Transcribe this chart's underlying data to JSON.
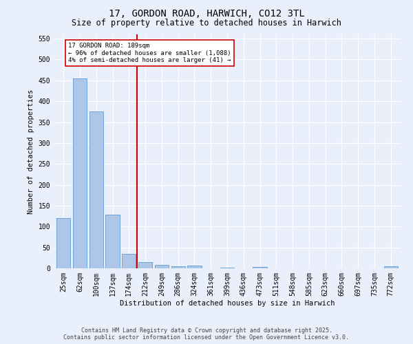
{
  "title": "17, GORDON ROAD, HARWICH, CO12 3TL",
  "subtitle": "Size of property relative to detached houses in Harwich",
  "xlabel": "Distribution of detached houses by size in Harwich",
  "ylabel": "Number of detached properties",
  "bar_labels": [
    "25sqm",
    "62sqm",
    "100sqm",
    "137sqm",
    "174sqm",
    "212sqm",
    "249sqm",
    "286sqm",
    "324sqm",
    "361sqm",
    "399sqm",
    "436sqm",
    "473sqm",
    "511sqm",
    "548sqm",
    "585sqm",
    "623sqm",
    "660sqm",
    "697sqm",
    "735sqm",
    "772sqm"
  ],
  "bar_values": [
    120,
    455,
    375,
    128,
    35,
    15,
    9,
    5,
    6,
    0,
    1,
    0,
    3,
    0,
    0,
    0,
    0,
    0,
    0,
    0,
    5
  ],
  "bar_color": "#aec6e8",
  "bar_edge_color": "#5b9bd5",
  "vline_x": 4.5,
  "vline_color": "#cc0000",
  "annotation_line1": "17 GORDON ROAD: 189sqm",
  "annotation_line2": "← 96% of detached houses are smaller (1,088)",
  "annotation_line3": "4% of semi-detached houses are larger (41) →",
  "annotation_box_color": "#cc0000",
  "ylim": [
    0,
    560
  ],
  "yticks": [
    0,
    50,
    100,
    150,
    200,
    250,
    300,
    350,
    400,
    450,
    500,
    550
  ],
  "footer_line1": "Contains HM Land Registry data © Crown copyright and database right 2025.",
  "footer_line2": "Contains public sector information licensed under the Open Government Licence v3.0.",
  "bg_color": "#eaf0fb",
  "plot_bg_color": "#eaf0fb",
  "grid_color": "#ffffff",
  "title_fontsize": 10,
  "subtitle_fontsize": 8.5,
  "label_fontsize": 7.5,
  "tick_fontsize": 7,
  "footer_fontsize": 6
}
